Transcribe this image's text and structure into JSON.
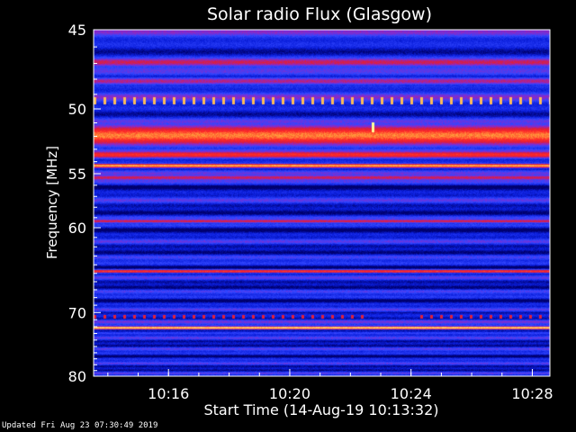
{
  "chart_data": {
    "type": "heatmap",
    "title": "Solar radio Flux (Glasgow)",
    "ylabel": "Frequency [MHz]",
    "xlabel": "Start Time (14-Aug-19 10:13:32)",
    "yticks": [
      "45",
      "50",
      "55",
      "60",
      "70",
      "80"
    ],
    "ytick_values": [
      45,
      50,
      55,
      60,
      70,
      80
    ],
    "xticks": [
      "10:16",
      "10:20",
      "10:24",
      "10:28"
    ],
    "xtick_minutes": [
      2.47,
      6.47,
      10.47,
      14.47
    ],
    "xlim_minutes": [
      0,
      15.05
    ],
    "ylim_mhz": [
      45,
      80
    ],
    "y_scale": "reciprocal",
    "colormap": [
      "#00006e",
      "#0a1edc",
      "#3246ff",
      "#8c28c8",
      "#dc1e3c",
      "#ff2828",
      "#ffa03c",
      "#ffff96"
    ],
    "bands": [
      {
        "center_mhz": 46.9,
        "width_mhz": 0.6,
        "intensity": 0.55
      },
      {
        "center_mhz": 48.1,
        "width_mhz": 0.5,
        "intensity": 0.5
      },
      {
        "center_mhz": 51.9,
        "width_mhz": 1.6,
        "intensity": 0.82
      },
      {
        "center_mhz": 53.4,
        "width_mhz": 0.6,
        "intensity": 0.7
      },
      {
        "center_mhz": 54.3,
        "width_mhz": 0.35,
        "intensity": 0.9
      },
      {
        "center_mhz": 55.3,
        "width_mhz": 0.5,
        "intensity": 0.55
      },
      {
        "center_mhz": 59.3,
        "width_mhz": 0.4,
        "intensity": 0.58
      },
      {
        "center_mhz": 64.7,
        "width_mhz": 0.4,
        "intensity": 0.72
      },
      {
        "center_mhz": 72.1,
        "width_mhz": 0.45,
        "intensity": 1.0
      }
    ],
    "dotted_bands": [
      {
        "center_mhz": 49.4,
        "intensity": 0.9
      },
      {
        "center_mhz": 70.5,
        "intensity": 0.6
      }
    ],
    "spike": {
      "time_minutes": 9.2,
      "center_mhz": 51.3,
      "intensity": 1.0
    }
  },
  "footer": "Updated Fri Aug 23 07:30:49 2019"
}
